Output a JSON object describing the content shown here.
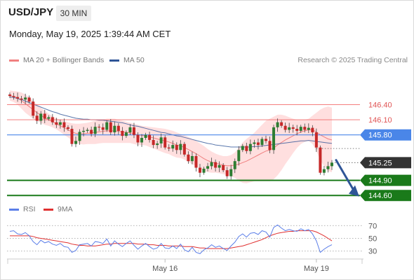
{
  "header": {
    "pair": "USD/JPY",
    "timeframe": "30 MIN",
    "datetime": "Monday, May 19, 2025 1:39:44 AM CET"
  },
  "legend": {
    "bollinger": "MA 20 + Bollinger Bands",
    "ma50": "MA 50",
    "credit": "Research © 2025 Trading Central"
  },
  "rsi_legend": {
    "rsi": "RSI",
    "ma9": "9MA"
  },
  "colors": {
    "up_candle": "#2e7d32",
    "down_candle": "#c62828",
    "bollinger": "#f08080",
    "band_fill": "#ffd9d9",
    "ma50": "#2f5597",
    "support": "#1a7a1a",
    "resistance": "#f26b6b",
    "pivot": "#4a86e8",
    "last_price": "#333333",
    "rsi": "#5b7ee8",
    "rsi_ma": "#e03030"
  },
  "chart_data": [
    {
      "type": "candlestick",
      "title": "USD/JPY 30 MIN",
      "y_range": [
        144.45,
        146.85
      ],
      "levels": [
        {
          "label": "146.40",
          "value": 146.4,
          "kind": "resistance"
        },
        {
          "label": "146.10",
          "value": 146.1,
          "kind": "resistance"
        },
        {
          "label": "145.80",
          "value": 145.8,
          "kind": "pivot"
        },
        {
          "label": "145.25",
          "value": 145.25,
          "kind": "last"
        },
        {
          "label": "144.90",
          "value": 144.9,
          "kind": "support"
        },
        {
          "label": "144.60",
          "value": 144.6,
          "kind": "support"
        }
      ],
      "x_tick_labels": [
        "May 16",
        "May 19"
      ],
      "close": [
        146.57,
        146.55,
        146.52,
        146.5,
        146.54,
        146.46,
        146.18,
        146.08,
        146.22,
        146.12,
        146.15,
        146.05,
        146.0,
        146.05,
        145.95,
        145.92,
        145.62,
        145.68,
        145.86,
        145.88,
        145.9,
        145.82,
        145.96,
        145.95,
        145.9,
        146.05,
        145.85,
        145.98,
        145.88,
        145.78,
        145.85,
        145.95,
        145.8,
        145.65,
        145.74,
        145.8,
        145.7,
        145.6,
        145.63,
        145.75,
        145.55,
        145.53,
        145.6,
        145.5,
        145.62,
        145.41,
        145.28,
        145.38,
        145.15,
        145.05,
        145.13,
        145.18,
        145.26,
        145.15,
        145.2,
        145.1,
        144.98,
        145.12,
        145.28,
        145.5,
        145.58,
        145.48,
        145.62,
        145.65,
        145.6,
        145.72,
        145.68,
        145.5,
        145.95,
        146.05,
        145.98,
        145.9,
        145.95,
        145.92,
        145.88,
        145.96,
        145.9,
        145.94,
        145.85,
        145.55,
        145.05,
        145.12,
        145.18,
        145.25
      ],
      "bollinger": {
        "middle": [
          146.58,
          146.56,
          146.53,
          146.48,
          146.42,
          146.36,
          146.3,
          146.24,
          146.19,
          146.14,
          146.1,
          146.06,
          146.02,
          145.98,
          145.94,
          145.9,
          145.86,
          145.83,
          145.82,
          145.82,
          145.83,
          145.84,
          145.85,
          145.86,
          145.87,
          145.88,
          145.88,
          145.88,
          145.87,
          145.86,
          145.85,
          145.84,
          145.82,
          145.8,
          145.79,
          145.78,
          145.76,
          145.74,
          145.72,
          145.7,
          145.68,
          145.66,
          145.63,
          145.6,
          145.58,
          145.55,
          145.51,
          145.47,
          145.43,
          145.38,
          145.33,
          145.29,
          145.26,
          145.24,
          145.22,
          145.2,
          145.19,
          145.19,
          145.2,
          145.22,
          145.25,
          145.28,
          145.32,
          145.36,
          145.4,
          145.44,
          145.48,
          145.5,
          145.54,
          145.6,
          145.65,
          145.7,
          145.74,
          145.78,
          145.82,
          145.86,
          145.88,
          145.9,
          145.9,
          145.86,
          145.8,
          145.76,
          145.72,
          145.7
        ],
        "upper": [
          146.68,
          146.67,
          146.66,
          146.64,
          146.6,
          146.54,
          146.48,
          146.4,
          146.34,
          146.28,
          146.22,
          146.17,
          146.13,
          146.1,
          146.08,
          146.05,
          146.03,
          146.02,
          146.02,
          146.03,
          146.04,
          146.06,
          146.08,
          146.09,
          146.1,
          146.12,
          146.12,
          146.12,
          146.1,
          146.08,
          146.06,
          146.04,
          146.02,
          146.0,
          145.98,
          145.97,
          145.96,
          145.95,
          145.94,
          145.93,
          145.92,
          145.9,
          145.88,
          145.85,
          145.82,
          145.79,
          145.76,
          145.72,
          145.68,
          145.63,
          145.58,
          145.52,
          145.47,
          145.43,
          145.4,
          145.38,
          145.38,
          145.4,
          145.45,
          145.55,
          145.65,
          145.72,
          145.78,
          145.84,
          145.92,
          146.0,
          146.08,
          146.12,
          146.16,
          146.2,
          146.2,
          146.18,
          146.15,
          146.12,
          146.1,
          146.1,
          146.1,
          146.12,
          146.18,
          146.24,
          146.3,
          146.34,
          146.36,
          146.34
        ],
        "lower": [
          146.48,
          146.45,
          146.4,
          146.32,
          146.24,
          146.18,
          146.12,
          146.08,
          146.04,
          146.0,
          145.98,
          145.95,
          145.91,
          145.86,
          145.8,
          145.75,
          145.69,
          145.64,
          145.62,
          145.61,
          145.62,
          145.62,
          145.62,
          145.63,
          145.64,
          145.64,
          145.64,
          145.64,
          145.64,
          145.64,
          145.64,
          145.64,
          145.62,
          145.6,
          145.6,
          145.59,
          145.56,
          145.53,
          145.5,
          145.47,
          145.44,
          145.42,
          145.38,
          145.35,
          145.34,
          145.31,
          145.26,
          145.22,
          145.18,
          145.13,
          145.08,
          145.06,
          145.05,
          145.05,
          145.04,
          145.02,
          145.0,
          144.98,
          144.95,
          144.89,
          144.85,
          144.84,
          144.86,
          144.88,
          144.88,
          144.88,
          144.88,
          144.88,
          144.92,
          145.0,
          145.1,
          145.22,
          145.33,
          145.44,
          145.54,
          145.62,
          145.66,
          145.68,
          145.62,
          145.48,
          145.3,
          145.18,
          145.08,
          145.06
        ]
      },
      "ma50": [
        146.55,
        146.54,
        146.52,
        146.5,
        146.47,
        146.44,
        146.41,
        146.38,
        146.35,
        146.32,
        146.29,
        146.26,
        146.24,
        146.21,
        146.19,
        146.17,
        146.15,
        146.13,
        146.12,
        146.11,
        146.11,
        146.1,
        146.1,
        146.09,
        146.09,
        146.08,
        146.07,
        146.06,
        146.05,
        146.04,
        146.02,
        146.0,
        145.98,
        145.97,
        145.95,
        145.93,
        145.91,
        145.89,
        145.87,
        145.85,
        145.84,
        145.82,
        145.8,
        145.78,
        145.77,
        145.75,
        145.73,
        145.71,
        145.69,
        145.67,
        145.65,
        145.63,
        145.62,
        145.6,
        145.59,
        145.58,
        145.57,
        145.56,
        145.56,
        145.56,
        145.56,
        145.56,
        145.56,
        145.57,
        145.57,
        145.58,
        145.59,
        145.6,
        145.61,
        145.62,
        145.63,
        145.64,
        145.65,
        145.66,
        145.67,
        145.68,
        145.68,
        145.69,
        145.68,
        145.67,
        145.66,
        145.65,
        145.64,
        145.63
      ]
    },
    {
      "type": "line",
      "title": "RSI",
      "y_range": [
        22,
        78
      ],
      "y_ticks": [
        70,
        50,
        30
      ],
      "series": [
        {
          "name": "RSI",
          "values": [
            61,
            62,
            57,
            56,
            59,
            54,
            45,
            40,
            47,
            43,
            45,
            41,
            39,
            42,
            37,
            36,
            28,
            31,
            40,
            41,
            42,
            38,
            45,
            44,
            42,
            49,
            38,
            46,
            41,
            37,
            42,
            46,
            39,
            33,
            38,
            42,
            37,
            33,
            35,
            42,
            35,
            34,
            38,
            34,
            41,
            32,
            29,
            36,
            28,
            26,
            32,
            35,
            40,
            36,
            38,
            34,
            31,
            38,
            44,
            53,
            57,
            52,
            58,
            59,
            56,
            62,
            60,
            52,
            67,
            71,
            66,
            62,
            64,
            62,
            61,
            65,
            62,
            64,
            57,
            46,
            28,
            33,
            37,
            40
          ]
        },
        {
          "name": "9MA",
          "values": [
            54,
            54,
            54,
            54,
            54,
            54,
            53,
            51,
            50,
            49,
            48,
            47,
            46,
            45,
            44,
            43,
            41,
            40,
            39,
            39,
            38,
            38,
            38,
            39,
            40,
            41,
            41,
            42,
            42,
            42,
            42,
            42,
            42,
            41,
            41,
            41,
            40,
            40,
            39,
            39,
            39,
            38,
            38,
            38,
            38,
            37,
            37,
            37,
            36,
            35,
            35,
            34,
            34,
            34,
            34,
            34,
            34,
            35,
            36,
            37,
            38,
            40,
            42,
            44,
            46,
            48,
            51,
            54,
            56,
            58,
            59,
            60,
            61,
            61,
            62,
            62,
            62,
            62,
            62,
            60,
            57,
            54,
            50,
            46
          ]
        }
      ]
    }
  ]
}
